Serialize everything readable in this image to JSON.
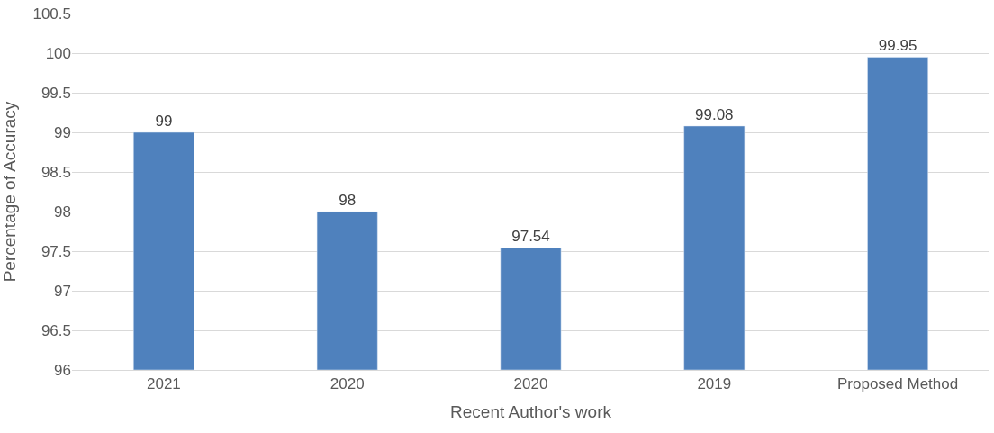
{
  "chart_data": {
    "type": "bar",
    "xlabel": "Recent Author's work",
    "ylabel": "Percentage of Accuracy",
    "categories": [
      "2021",
      "2020",
      "2020",
      "2019",
      "Proposed Method"
    ],
    "values": [
      99,
      98,
      97.54,
      99.08,
      99.95
    ],
    "color": "#4f81bd",
    "ylim": [
      96,
      100.5
    ],
    "yticks": [
      96,
      96.5,
      97,
      97.5,
      98,
      98.5,
      99,
      99.5,
      100,
      100.5
    ],
    "grid": "y",
    "data_labels": true
  }
}
